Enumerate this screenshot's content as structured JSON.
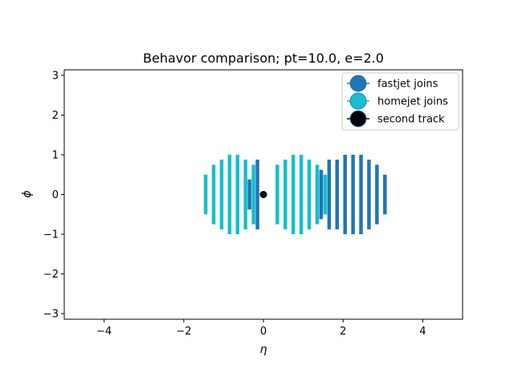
{
  "chart_data": {
    "type": "scatter",
    "title": "Behavor comparison; pt=10.0, e=2.0",
    "xlabel": "η",
    "ylabel": "ϕ",
    "xlim": [
      -5,
      5
    ],
    "ylim": [
      -3.14159,
      3.14159
    ],
    "xticks": [
      -4,
      -2,
      0,
      2,
      4
    ],
    "xtick_labels": [
      "−4",
      "−2",
      "0",
      "2",
      "4"
    ],
    "yticks": [
      -3,
      -2,
      -1,
      0,
      1,
      2,
      3
    ],
    "ytick_labels": [
      "−3",
      "−2",
      "−1",
      "0",
      "1",
      "2",
      "3"
    ],
    "grid": false,
    "legend_position": "top-right",
    "colors": {
      "fastjet": "#1f77b4",
      "homejet": "#17becf",
      "second": "#000000"
    },
    "legend": [
      {
        "key": "fastjet",
        "label": "fastjet joins"
      },
      {
        "key": "homejet",
        "label": "homejet joins"
      },
      {
        "key": "second",
        "label": "second track"
      }
    ],
    "series": [
      {
        "key": "homejet",
        "segments": [
          {
            "eta": -1.45,
            "phi_half": 0.5
          },
          {
            "eta": -1.25,
            "phi_half": 0.75
          },
          {
            "eta": -1.05,
            "phi_half": 0.88
          },
          {
            "eta": -0.85,
            "phi_half": 1.0
          },
          {
            "eta": -0.65,
            "phi_half": 1.0
          },
          {
            "eta": -0.45,
            "phi_half": 0.88
          },
          {
            "eta": -0.25,
            "phi_half": 0.75
          },
          {
            "eta": 0.35,
            "phi_half": 0.75
          },
          {
            "eta": 0.55,
            "phi_half": 0.88
          },
          {
            "eta": 0.75,
            "phi_half": 1.0
          },
          {
            "eta": 0.95,
            "phi_half": 1.0
          },
          {
            "eta": 1.15,
            "phi_half": 0.88
          },
          {
            "eta": 1.35,
            "phi_half": 0.75
          },
          {
            "eta": 1.55,
            "phi_half": 0.5
          }
        ]
      },
      {
        "key": "fastjet",
        "segments": [
          {
            "eta": -0.35,
            "phi_half": 0.38
          },
          {
            "eta": -0.15,
            "phi_half": 0.88
          },
          {
            "eta": 1.45,
            "phi_half": 0.62
          },
          {
            "eta": 1.65,
            "phi_half": 0.88
          },
          {
            "eta": 1.85,
            "phi_half": 0.88
          },
          {
            "eta": 2.05,
            "phi_half": 1.0
          },
          {
            "eta": 2.25,
            "phi_half": 1.0
          },
          {
            "eta": 2.45,
            "phi_half": 1.0
          },
          {
            "eta": 2.65,
            "phi_half": 0.88
          },
          {
            "eta": 2.85,
            "phi_half": 0.75
          },
          {
            "eta": 3.05,
            "phi_half": 0.5
          }
        ]
      },
      {
        "key": "second",
        "points": [
          {
            "eta": 0.0,
            "phi": 0.0
          }
        ]
      }
    ]
  }
}
